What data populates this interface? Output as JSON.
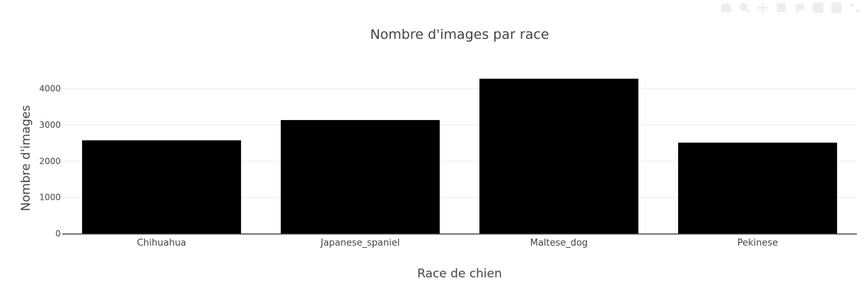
{
  "chart_data": {
    "type": "bar",
    "title": "Nombre d'images par race",
    "xlabel": "Race de chien",
    "ylabel": "Nombre d'images",
    "categories": [
      "Chihuahua",
      "Japanese_spaniel",
      "Maltese_dog",
      "Pekinese"
    ],
    "values": [
      2576,
      3135,
      4275,
      2512
    ],
    "ylim": [
      0,
      4500
    ],
    "yticks": [
      0,
      1000,
      2000,
      3000,
      4000
    ],
    "grid": true,
    "bar_color": "#000000"
  },
  "modebar": {
    "icons": [
      "camera-icon",
      "zoom-icon",
      "pan-icon",
      "box-select-icon",
      "lasso-icon",
      "zoom-in-icon",
      "zoom-out-icon",
      "autoscale-icon"
    ]
  }
}
